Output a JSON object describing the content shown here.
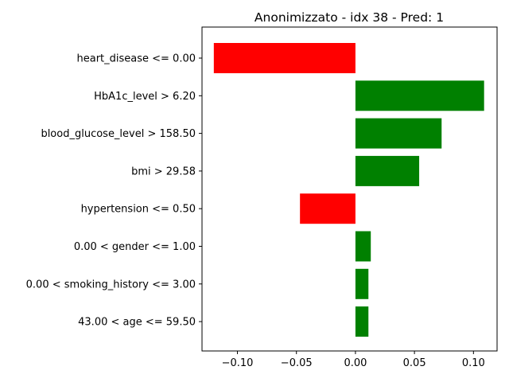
{
  "chart_data": {
    "type": "bar",
    "orientation": "horizontal",
    "title": "Anonimizzato - idx 38 - Pred: 1",
    "xlabel": "",
    "ylabel": "",
    "categories": [
      "heart_disease <= 0.00",
      "HbA1c_level > 6.20",
      "blood_glucose_level > 158.50",
      "bmi > 29.58",
      "hypertension <= 0.50",
      "0.00 < gender <= 1.00",
      "0.00 < smoking_history <= 3.00",
      "43.00 < age <= 59.50"
    ],
    "values": [
      -0.12,
      0.109,
      0.073,
      0.054,
      -0.047,
      0.013,
      0.011,
      0.011
    ],
    "xlim": [
      -0.13,
      0.12
    ],
    "xticks": [
      -0.1,
      -0.05,
      0.0,
      0.05,
      0.1
    ],
    "xtick_labels": [
      "−0.10",
      "−0.05",
      "0.00",
      "0.05",
      "0.10"
    ],
    "colors": {
      "positive": "#008000",
      "negative": "#ff0000"
    },
    "grid": false,
    "legend": "none"
  }
}
